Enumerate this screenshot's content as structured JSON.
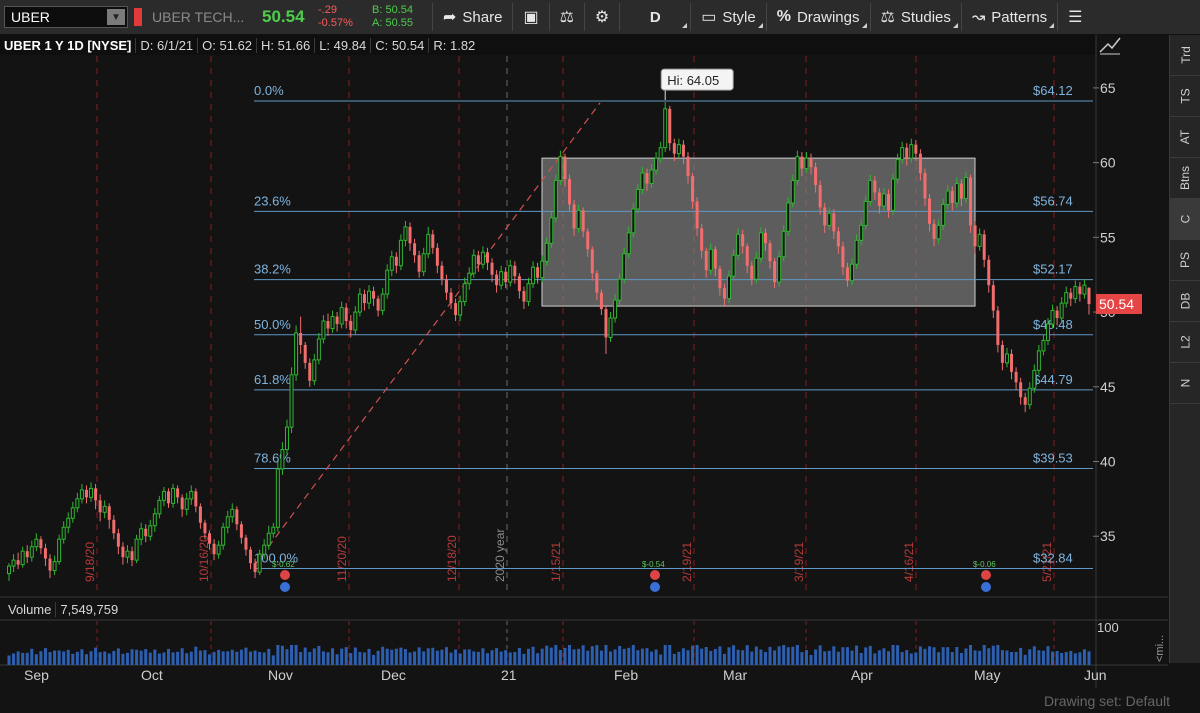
{
  "toolbar": {
    "symbol": "UBER",
    "company": "UBER TECH...",
    "last": "50.54",
    "net_change": "-.29",
    "pct_change": "-0.57%",
    "bid": "B: 50.54",
    "ask": "A: 50.55",
    "share": "Share",
    "aggregation": "D",
    "style": "Style",
    "drawings": "Drawings",
    "studies": "Studies",
    "patterns": "Patterns"
  },
  "infobar": {
    "symbol": "UBER 1 Y 1D [NYSE]",
    "date": "D: 6/1/21",
    "open": "O: 51.62",
    "high": "H: 51.66",
    "low": "L: 49.84",
    "close": "C: 50.54",
    "range": "R: 1.82"
  },
  "side_tabs": [
    "Trd",
    "TS",
    "AT",
    "Btns",
    "C",
    "PS",
    "DB",
    "L2",
    "N"
  ],
  "volume": {
    "label": "Volume",
    "value": "7,549,759",
    "scale_max": "100",
    "side_label": "<mi..."
  },
  "bottom": {
    "drawing_set": "Drawing set: Default"
  },
  "chart_data": {
    "type": "candlestick",
    "price_axis": {
      "min": 31,
      "max": 67,
      "ticks": [
        35,
        40,
        45,
        50,
        55,
        60,
        65
      ]
    },
    "x_months": [
      "Sep",
      "Oct",
      "Nov",
      "Dec",
      "21",
      "Feb",
      "Mar",
      "Apr",
      "May",
      "Jun"
    ],
    "vertical_markers": [
      "9/18/20",
      "10/16/20",
      "11/20/20",
      "12/18/20",
      "2020 year",
      "1/15/21",
      "2/19/21",
      "3/19/21",
      "4/16/21",
      "5/21/21"
    ],
    "fib_levels": [
      {
        "pct": "0.0%",
        "label": "$64.12",
        "price": 64.12
      },
      {
        "pct": "23.6%",
        "label": "$56.74",
        "price": 56.74
      },
      {
        "pct": "38.2%",
        "label": "$52.17",
        "price": 52.17
      },
      {
        "pct": "50.0%",
        "label": "$48.48",
        "price": 48.48
      },
      {
        "pct": "61.8%",
        "label": "$44.79",
        "price": 44.79
      },
      {
        "pct": "78.6%",
        "label": "$39.53",
        "price": 39.53
      },
      {
        "pct": "100.0%",
        "label": "$32.84",
        "price": 32.84
      }
    ],
    "high_bubble": "Hi: 64.05",
    "high_price": 64.05,
    "last_price": 50.54,
    "last_label": "50.54",
    "range_box": {
      "top": 60.3,
      "bottom": 50.4
    },
    "trendline": {
      "start": 33.0,
      "end": 64.0
    },
    "events": [
      "$-0.62",
      "$-0.54",
      "$-0.06"
    ],
    "candles": [
      [
        32.5,
        33.0,
        32.0,
        33.2
      ],
      [
        33.0,
        33.4,
        32.6,
        33.8
      ],
      [
        33.4,
        33.1,
        32.8,
        33.9
      ],
      [
        33.1,
        34.0,
        32.9,
        34.3
      ],
      [
        34.0,
        33.6,
        33.2,
        34.4
      ],
      [
        33.6,
        34.3,
        33.3,
        34.7
      ],
      [
        34.3,
        34.8,
        34.0,
        35.2
      ],
      [
        34.8,
        34.2,
        33.8,
        35.0
      ],
      [
        34.2,
        33.5,
        33.0,
        34.5
      ],
      [
        33.5,
        32.7,
        32.2,
        33.8
      ],
      [
        32.7,
        33.3,
        32.4,
        33.7
      ],
      [
        33.3,
        34.8,
        33.1,
        35.1
      ],
      [
        34.8,
        35.6,
        34.5,
        36.0
      ],
      [
        35.6,
        36.2,
        35.2,
        36.6
      ],
      [
        36.2,
        36.9,
        35.9,
        37.3
      ],
      [
        36.9,
        37.5,
        36.6,
        37.9
      ],
      [
        37.5,
        38.1,
        37.2,
        38.5
      ],
      [
        38.1,
        37.6,
        37.2,
        38.4
      ],
      [
        37.6,
        38.2,
        37.3,
        38.6
      ],
      [
        38.2,
        37.4,
        36.8,
        38.5
      ],
      [
        37.4,
        36.6,
        36.0,
        37.8
      ],
      [
        36.6,
        37.0,
        36.2,
        37.4
      ],
      [
        37.0,
        36.1,
        35.5,
        37.2
      ],
      [
        36.1,
        35.2,
        34.8,
        36.4
      ],
      [
        35.2,
        34.3,
        33.8,
        35.5
      ],
      [
        34.3,
        33.6,
        33.1,
        34.6
      ],
      [
        33.6,
        34.0,
        33.2,
        34.4
      ],
      [
        34.0,
        33.4,
        33.0,
        34.3
      ],
      [
        33.4,
        34.8,
        33.2,
        35.1
      ],
      [
        34.8,
        35.5,
        34.4,
        35.9
      ],
      [
        35.5,
        35.0,
        34.6,
        35.8
      ],
      [
        35.0,
        35.7,
        34.7,
        36.1
      ],
      [
        35.7,
        36.5,
        35.3,
        36.9
      ],
      [
        36.5,
        37.4,
        36.2,
        37.7
      ],
      [
        37.4,
        38.0,
        37.0,
        38.3
      ],
      [
        38.0,
        37.2,
        36.9,
        38.2
      ],
      [
        37.2,
        38.2,
        36.9,
        38.5
      ],
      [
        38.2,
        37.6,
        37.2,
        38.4
      ],
      [
        37.6,
        36.8,
        36.3,
        37.8
      ],
      [
        36.8,
        37.5,
        36.4,
        37.9
      ],
      [
        37.5,
        38.0,
        37.1,
        38.4
      ],
      [
        38.0,
        37.0,
        36.6,
        38.2
      ],
      [
        37.0,
        35.9,
        35.5,
        37.2
      ],
      [
        35.9,
        35.2,
        34.8,
        36.1
      ],
      [
        35.2,
        34.5,
        34.1,
        35.4
      ],
      [
        34.5,
        33.8,
        33.4,
        34.8
      ],
      [
        33.8,
        34.4,
        33.5,
        34.7
      ],
      [
        34.4,
        35.6,
        34.1,
        35.9
      ],
      [
        35.6,
        36.3,
        35.2,
        36.7
      ],
      [
        36.3,
        36.8,
        35.9,
        37.2
      ],
      [
        36.8,
        35.8,
        35.4,
        37.0
      ],
      [
        35.8,
        34.9,
        34.5,
        36.0
      ],
      [
        34.9,
        34.1,
        33.7,
        35.1
      ],
      [
        34.1,
        33.2,
        32.8,
        34.3
      ],
      [
        33.2,
        32.6,
        32.2,
        33.5
      ],
      [
        32.6,
        33.8,
        32.4,
        34.1
      ],
      [
        33.8,
        34.4,
        33.5,
        34.8
      ],
      [
        34.4,
        35.2,
        34.1,
        35.7
      ],
      [
        35.2,
        35.6,
        34.9,
        35.9
      ],
      [
        35.6,
        39.5,
        35.3,
        40.0
      ],
      [
        39.5,
        40.8,
        39.1,
        41.3
      ],
      [
        40.8,
        42.3,
        40.5,
        42.8
      ],
      [
        42.3,
        45.8,
        41.9,
        46.3
      ],
      [
        45.8,
        48.6,
        45.4,
        49.1
      ],
      [
        48.6,
        47.8,
        47.2,
        49.7
      ],
      [
        47.8,
        46.6,
        46.2,
        48.0
      ],
      [
        46.6,
        45.4,
        45.0,
        46.9
      ],
      [
        45.4,
        46.8,
        45.1,
        47.2
      ],
      [
        46.8,
        48.2,
        46.5,
        48.6
      ],
      [
        48.2,
        49.4,
        47.9,
        49.8
      ],
      [
        49.4,
        48.9,
        48.4,
        49.9
      ],
      [
        48.9,
        49.7,
        48.6,
        50.1
      ],
      [
        49.7,
        49.2,
        48.7,
        50.0
      ],
      [
        49.2,
        50.3,
        48.9,
        50.7
      ],
      [
        50.3,
        49.4,
        48.9,
        50.6
      ],
      [
        49.4,
        48.8,
        48.3,
        49.8
      ],
      [
        48.8,
        50.0,
        48.5,
        50.4
      ],
      [
        50.0,
        51.2,
        49.7,
        51.6
      ],
      [
        51.2,
        50.6,
        50.1,
        51.5
      ],
      [
        50.6,
        51.4,
        50.2,
        51.8
      ],
      [
        51.4,
        50.9,
        50.4,
        51.7
      ],
      [
        50.9,
        50.1,
        49.7,
        51.1
      ],
      [
        50.1,
        51.2,
        49.8,
        51.6
      ],
      [
        51.2,
        52.8,
        50.9,
        53.2
      ],
      [
        52.8,
        53.7,
        52.4,
        54.1
      ],
      [
        53.7,
        53.1,
        52.6,
        54.0
      ],
      [
        53.1,
        54.8,
        52.8,
        55.2
      ],
      [
        54.8,
        55.7,
        54.4,
        56.1
      ],
      [
        55.7,
        54.6,
        54.1,
        56.0
      ],
      [
        54.6,
        53.8,
        53.3,
        54.9
      ],
      [
        53.8,
        52.7,
        52.3,
        54.1
      ],
      [
        52.7,
        53.9,
        52.4,
        54.3
      ],
      [
        53.9,
        55.2,
        53.6,
        55.7
      ],
      [
        55.2,
        54.3,
        53.9,
        55.5
      ],
      [
        54.3,
        53.1,
        52.6,
        54.6
      ],
      [
        53.1,
        52.2,
        51.8,
        53.4
      ],
      [
        52.2,
        51.3,
        50.8,
        52.5
      ],
      [
        51.3,
        50.6,
        50.2,
        51.6
      ],
      [
        50.6,
        49.8,
        49.4,
        50.9
      ],
      [
        49.8,
        50.7,
        49.4,
        51.1
      ],
      [
        50.7,
        51.9,
        50.4,
        52.3
      ],
      [
        51.9,
        52.6,
        51.5,
        53.0
      ],
      [
        52.6,
        53.8,
        52.3,
        54.2
      ],
      [
        53.8,
        53.2,
        52.7,
        54.1
      ],
      [
        53.2,
        54.0,
        52.9,
        54.4
      ],
      [
        54.0,
        53.3,
        52.8,
        54.3
      ],
      [
        53.3,
        52.5,
        52.0,
        53.6
      ],
      [
        52.5,
        51.8,
        51.3,
        52.8
      ],
      [
        51.8,
        52.7,
        51.5,
        53.1
      ],
      [
        52.7,
        52.0,
        51.6,
        53.0
      ],
      [
        52.0,
        53.1,
        51.7,
        53.5
      ],
      [
        53.1,
        52.4,
        51.9,
        53.4
      ],
      [
        52.4,
        51.4,
        50.9,
        52.6
      ],
      [
        51.4,
        50.7,
        50.2,
        51.7
      ],
      [
        50.7,
        51.9,
        50.4,
        52.3
      ],
      [
        51.9,
        53.0,
        51.6,
        53.4
      ],
      [
        53.0,
        52.3,
        51.9,
        53.3
      ],
      [
        52.3,
        53.4,
        52.0,
        53.8
      ],
      [
        53.4,
        54.6,
        53.1,
        55.0
      ],
      [
        54.6,
        56.3,
        54.3,
        56.7
      ],
      [
        56.3,
        58.8,
        56.0,
        59.2
      ],
      [
        58.8,
        60.4,
        58.5,
        60.8
      ],
      [
        60.4,
        58.9,
        58.4,
        60.6
      ],
      [
        58.9,
        57.2,
        56.8,
        59.2
      ],
      [
        57.2,
        55.6,
        55.1,
        57.5
      ],
      [
        55.6,
        56.8,
        55.3,
        57.2
      ],
      [
        56.8,
        55.4,
        55.0,
        57.0
      ],
      [
        55.4,
        54.2,
        53.7,
        55.6
      ],
      [
        54.2,
        52.6,
        52.1,
        54.4
      ],
      [
        52.6,
        51.3,
        50.8,
        52.8
      ],
      [
        51.3,
        50.2,
        49.8,
        51.5
      ],
      [
        50.2,
        48.3,
        47.2,
        50.4
      ],
      [
        48.3,
        49.6,
        48.0,
        50.0
      ],
      [
        49.6,
        50.8,
        49.3,
        51.2
      ],
      [
        50.8,
        52.2,
        50.5,
        52.6
      ],
      [
        52.2,
        53.9,
        51.9,
        54.3
      ],
      [
        53.9,
        55.3,
        53.6,
        55.7
      ],
      [
        55.3,
        56.9,
        55.0,
        57.3
      ],
      [
        56.9,
        58.2,
        56.6,
        58.6
      ],
      [
        58.2,
        59.3,
        57.9,
        59.7
      ],
      [
        59.3,
        58.6,
        58.1,
        59.6
      ],
      [
        58.6,
        59.5,
        58.3,
        59.9
      ],
      [
        59.5,
        60.3,
        59.2,
        60.7
      ],
      [
        60.3,
        61.0,
        60.0,
        61.4
      ],
      [
        61.0,
        63.6,
        60.7,
        64.05
      ],
      [
        63.6,
        61.3,
        60.8,
        63.8
      ],
      [
        61.3,
        60.6,
        60.1,
        61.6
      ],
      [
        60.6,
        61.2,
        60.3,
        61.6
      ],
      [
        61.2,
        60.4,
        59.9,
        61.5
      ],
      [
        60.4,
        59.1,
        58.6,
        60.7
      ],
      [
        59.1,
        57.4,
        56.9,
        59.3
      ],
      [
        57.4,
        55.6,
        55.1,
        57.7
      ],
      [
        55.6,
        54.1,
        53.6,
        55.9
      ],
      [
        54.1,
        52.8,
        52.3,
        54.3
      ],
      [
        52.8,
        54.2,
        52.5,
        54.6
      ],
      [
        54.2,
        52.9,
        52.4,
        54.4
      ],
      [
        52.9,
        51.6,
        51.1,
        53.1
      ],
      [
        51.6,
        50.9,
        50.4,
        51.9
      ],
      [
        50.9,
        52.4,
        50.6,
        52.8
      ],
      [
        52.4,
        53.8,
        52.1,
        54.2
      ],
      [
        53.8,
        55.2,
        53.5,
        55.6
      ],
      [
        55.2,
        54.4,
        53.9,
        55.5
      ],
      [
        54.4,
        53.1,
        52.6,
        54.6
      ],
      [
        53.1,
        52.2,
        51.8,
        53.4
      ],
      [
        52.2,
        53.6,
        51.9,
        54.0
      ],
      [
        53.6,
        55.3,
        53.3,
        55.7
      ],
      [
        55.3,
        54.6,
        54.1,
        55.6
      ],
      [
        54.6,
        53.4,
        52.9,
        54.8
      ],
      [
        53.4,
        52.0,
        51.6,
        53.6
      ],
      [
        52.0,
        53.7,
        51.7,
        54.1
      ],
      [
        53.7,
        55.4,
        53.4,
        55.8
      ],
      [
        55.4,
        57.3,
        55.1,
        57.7
      ],
      [
        57.3,
        58.8,
        57.0,
        59.2
      ],
      [
        58.8,
        60.4,
        58.5,
        60.8
      ],
      [
        60.4,
        59.6,
        59.1,
        60.7
      ],
      [
        59.6,
        60.3,
        59.3,
        60.7
      ],
      [
        60.3,
        59.7,
        59.2,
        60.6
      ],
      [
        59.7,
        58.5,
        58.0,
        60.0
      ],
      [
        58.5,
        57.0,
        56.5,
        58.8
      ],
      [
        57.0,
        55.8,
        55.3,
        57.3
      ],
      [
        55.8,
        56.6,
        55.5,
        57.0
      ],
      [
        56.6,
        55.4,
        54.9,
        56.9
      ],
      [
        55.4,
        54.4,
        53.9,
        55.7
      ],
      [
        54.4,
        53.0,
        52.5,
        54.7
      ],
      [
        53.0,
        52.1,
        51.7,
        53.3
      ],
      [
        52.1,
        53.2,
        51.8,
        53.6
      ],
      [
        53.2,
        54.8,
        52.9,
        55.2
      ],
      [
        54.8,
        55.8,
        54.5,
        56.2
      ],
      [
        55.8,
        57.4,
        55.5,
        57.8
      ],
      [
        57.4,
        58.8,
        57.1,
        59.2
      ],
      [
        58.8,
        58.0,
        57.5,
        59.1
      ],
      [
        58.0,
        57.1,
        56.6,
        58.3
      ],
      [
        57.1,
        57.9,
        56.8,
        58.3
      ],
      [
        57.9,
        56.8,
        56.3,
        58.2
      ],
      [
        56.8,
        58.9,
        56.5,
        59.3
      ],
      [
        58.9,
        60.2,
        58.6,
        60.6
      ],
      [
        60.2,
        61.0,
        59.9,
        61.4
      ],
      [
        61.0,
        60.3,
        59.8,
        61.3
      ],
      [
        60.3,
        61.2,
        60.0,
        61.6
      ],
      [
        61.2,
        60.6,
        60.1,
        61.5
      ],
      [
        60.6,
        59.3,
        58.8,
        60.9
      ],
      [
        59.3,
        57.6,
        57.1,
        59.6
      ],
      [
        57.6,
        55.9,
        55.4,
        57.9
      ],
      [
        55.9,
        54.9,
        54.4,
        56.2
      ],
      [
        54.9,
        55.8,
        54.6,
        56.2
      ],
      [
        55.8,
        57.2,
        55.5,
        57.6
      ],
      [
        57.2,
        58.1,
        56.9,
        58.5
      ],
      [
        58.1,
        57.3,
        56.8,
        58.4
      ],
      [
        57.3,
        58.6,
        57.0,
        59.0
      ],
      [
        58.6,
        57.6,
        57.1,
        58.9
      ],
      [
        57.6,
        59.0,
        57.3,
        59.4
      ],
      [
        59.0,
        55.8,
        55.3,
        59.2
      ],
      [
        55.8,
        54.4,
        53.9,
        56.1
      ],
      [
        54.4,
        55.2,
        54.1,
        55.6
      ],
      [
        55.2,
        53.5,
        53.0,
        55.5
      ],
      [
        53.5,
        51.8,
        51.3,
        53.8
      ],
      [
        51.8,
        50.1,
        49.6,
        52.1
      ],
      [
        50.1,
        47.8,
        47.3,
        50.4
      ],
      [
        47.8,
        46.6,
        46.1,
        48.1
      ],
      [
        46.6,
        47.2,
        46.3,
        47.6
      ],
      [
        47.2,
        46.0,
        45.5,
        47.5
      ],
      [
        46.0,
        45.3,
        44.8,
        46.3
      ],
      [
        45.3,
        44.3,
        43.8,
        45.6
      ],
      [
        44.3,
        43.8,
        43.3,
        44.6
      ],
      [
        43.8,
        44.9,
        43.5,
        45.3
      ],
      [
        44.9,
        46.1,
        44.6,
        46.5
      ],
      [
        46.1,
        47.4,
        45.8,
        47.8
      ],
      [
        47.4,
        48.1,
        47.1,
        48.5
      ],
      [
        48.1,
        49.2,
        47.8,
        49.6
      ],
      [
        49.2,
        50.1,
        48.9,
        50.5
      ],
      [
        50.1,
        49.6,
        49.1,
        50.4
      ],
      [
        49.6,
        50.6,
        49.3,
        51.0
      ],
      [
        50.6,
        51.3,
        50.3,
        51.7
      ],
      [
        51.3,
        50.9,
        50.4,
        51.6
      ],
      [
        50.9,
        51.7,
        50.6,
        52.1
      ],
      [
        51.7,
        51.2,
        50.7,
        52.0
      ],
      [
        51.2,
        51.8,
        50.9,
        52.2
      ],
      [
        51.62,
        50.54,
        49.84,
        51.66
      ]
    ]
  }
}
